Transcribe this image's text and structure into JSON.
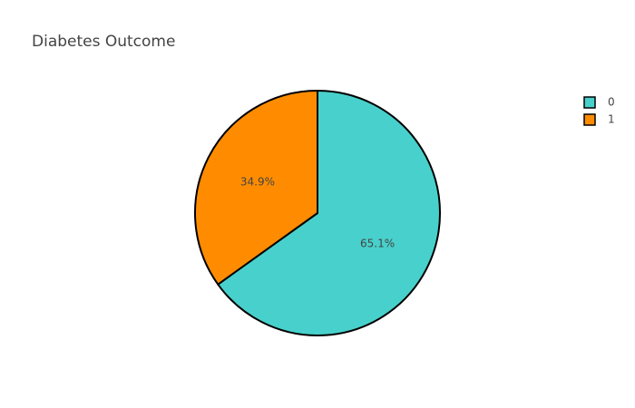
{
  "chart_data": {
    "type": "pie",
    "title": "Diabetes Outcome",
    "labels": [
      "0",
      "1"
    ],
    "values": [
      65.1,
      34.9
    ],
    "percent_labels": [
      "65.1%",
      "34.9%"
    ],
    "colors": [
      "#48d1cc",
      "#ff8c00"
    ],
    "slice_outline_color": "#000000",
    "sort": "descending",
    "direction": "clockwise",
    "start_angle_deg": 0,
    "legend": {
      "position": "top-right",
      "entries": [
        "0",
        "1"
      ]
    }
  }
}
